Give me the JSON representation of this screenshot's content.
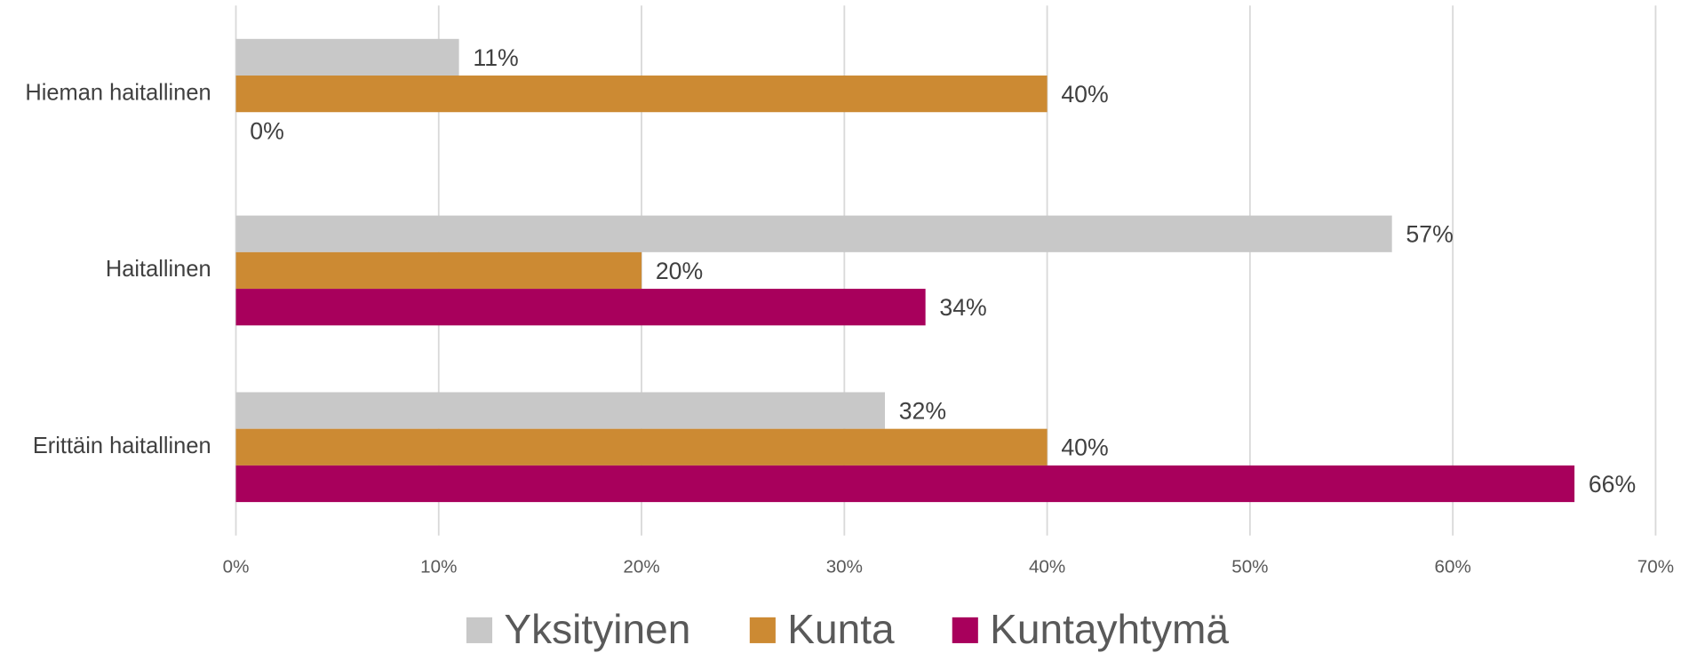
{
  "chart_data": {
    "type": "bar",
    "orientation": "horizontal",
    "categories": [
      "Hieman haitallinen",
      "Haitallinen",
      "Erittäin haitallinen"
    ],
    "series": [
      {
        "name": "Yksityinen",
        "color": "#c8c8c8",
        "values": [
          11,
          57,
          32
        ],
        "value_labels": [
          "11%",
          "57%",
          "32%"
        ]
      },
      {
        "name": "Kunta",
        "color": "#cc8a33",
        "values": [
          40,
          20,
          40
        ],
        "value_labels": [
          "40%",
          "20%",
          "40%"
        ]
      },
      {
        "name": "Kuntayhtymä",
        "color": "#a8005c",
        "values": [
          0,
          34,
          66
        ],
        "value_labels": [
          "0%",
          "34%",
          "66%"
        ]
      }
    ],
    "xlim": [
      0,
      70
    ],
    "xticks": [
      {
        "value": 0,
        "label": "0%"
      },
      {
        "value": 10,
        "label": "10%"
      },
      {
        "value": 20,
        "label": "20%"
      },
      {
        "value": 30,
        "label": "30%"
      },
      {
        "value": 40,
        "label": "40%"
      },
      {
        "value": 50,
        "label": "50%"
      },
      {
        "value": 60,
        "label": "60%"
      },
      {
        "value": 70,
        "label": "70%"
      }
    ],
    "grid": true,
    "legend": "bottom"
  }
}
